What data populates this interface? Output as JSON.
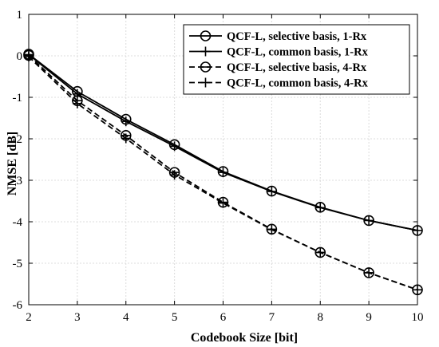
{
  "chart_data": {
    "type": "line",
    "title": "",
    "xlabel": "Codebook Size [bit]",
    "ylabel": "NMSE [dB]",
    "xlim": [
      2,
      10
    ],
    "ylim": [
      -6,
      1
    ],
    "xticks": [
      2,
      3,
      4,
      5,
      6,
      7,
      8,
      9,
      10
    ],
    "yticks": [
      1,
      0,
      -1,
      -2,
      -3,
      -4,
      -5,
      -6
    ],
    "grid": true,
    "legend_position": "top-right",
    "x": [
      2,
      3,
      4,
      5,
      6,
      7,
      8,
      9,
      10
    ],
    "series": [
      {
        "name": "QCF-L, selective basis, 1-Rx",
        "line": "solid",
        "marker": "circle",
        "values": [
          0.04,
          -0.86,
          -1.53,
          -2.14,
          -2.79,
          -3.26,
          -3.65,
          -3.97,
          -4.21
        ]
      },
      {
        "name": "QCF-L, common basis, 1-Rx",
        "line": "solid",
        "marker": "plus",
        "values": [
          0.03,
          -0.92,
          -1.58,
          -2.18,
          -2.81,
          -3.27,
          -3.66,
          -3.97,
          -4.21
        ]
      },
      {
        "name": "QCF-L, selective basis, 4-Rx",
        "line": "dashed",
        "marker": "circle-minus",
        "values": [
          0.01,
          -1.08,
          -1.92,
          -2.81,
          -3.53,
          -4.18,
          -4.74,
          -5.23,
          -5.64
        ]
      },
      {
        "name": "QCF-L, common basis, 4-Rx",
        "line": "dashed",
        "marker": "plus",
        "values": [
          -0.02,
          -1.15,
          -1.99,
          -2.87,
          -3.55,
          -4.19,
          -4.74,
          -5.23,
          -5.64
        ]
      }
    ],
    "colors": {
      "line": "#000000",
      "grid": "#dcdcdc",
      "background": "#ffffff"
    }
  }
}
